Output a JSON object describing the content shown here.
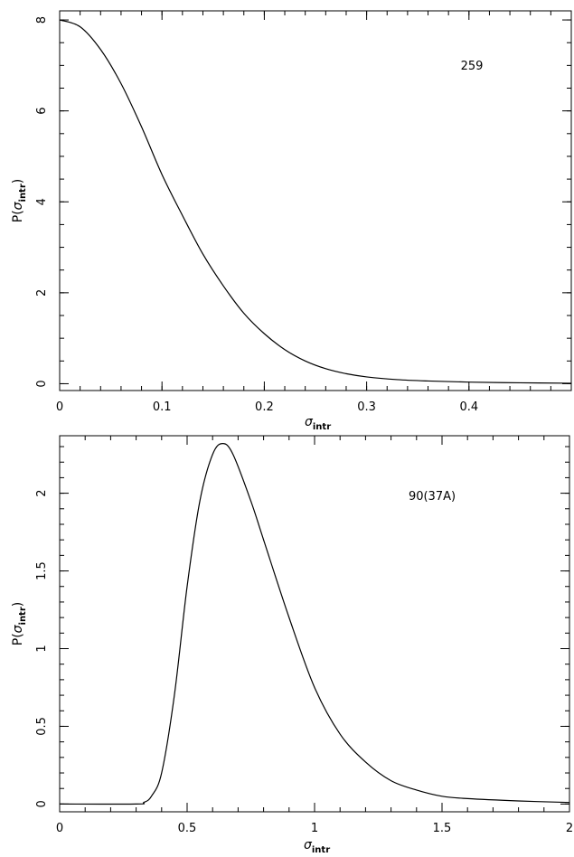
{
  "chart_data": [
    {
      "type": "line",
      "title": "",
      "xlabel": "σ",
      "xlabel_sub": "intr",
      "ylabel_prefix": "P(",
      "ylabel_sym": "σ",
      "ylabel_sub": "intr",
      "ylabel_suffix": ")",
      "annotation": "259",
      "xlim": [
        0,
        0.5
      ],
      "ylim": [
        -0.15,
        8.2
      ],
      "x_ticks": [
        0,
        0.1,
        0.2,
        0.3,
        0.4
      ],
      "x_tick_labels": [
        "0",
        "0.1",
        "0.2",
        "0.3",
        "0.4"
      ],
      "x_minor_step": 0.02,
      "y_ticks": [
        0,
        2,
        4,
        6,
        8
      ],
      "y_tick_labels": [
        "0",
        "2",
        "4",
        "6",
        "8"
      ],
      "y_minor_step": 0.5,
      "series": [
        {
          "x": [
            0,
            0.02,
            0.04,
            0.06,
            0.08,
            0.1,
            0.12,
            0.14,
            0.16,
            0.18,
            0.2,
            0.22,
            0.24,
            0.26,
            0.28,
            0.3,
            0.33,
            0.36,
            0.4,
            0.45,
            0.5
          ],
          "values": [
            8.0,
            7.85,
            7.35,
            6.6,
            5.65,
            4.6,
            3.7,
            2.85,
            2.15,
            1.55,
            1.1,
            0.75,
            0.5,
            0.33,
            0.22,
            0.15,
            0.09,
            0.06,
            0.035,
            0.02,
            0.01
          ]
        }
      ]
    },
    {
      "type": "line",
      "title": "",
      "xlabel": "σ",
      "xlabel_sub": "intr",
      "ylabel_prefix": "P(",
      "ylabel_sym": "σ",
      "ylabel_sub": "intr",
      "ylabel_suffix": ")",
      "annotation": "90(37A)",
      "xlim": [
        0,
        2
      ],
      "ylim": [
        -0.05,
        2.37
      ],
      "x_ticks": [
        0,
        0.5,
        1,
        1.5,
        2
      ],
      "x_tick_labels": [
        "0",
        "0.5",
        "1",
        "1.5",
        "2"
      ],
      "x_minor_step": 0.1,
      "y_ticks": [
        0,
        0.5,
        1,
        1.5,
        2
      ],
      "y_tick_labels": [
        "0",
        "0.5",
        "1",
        "1.5",
        "2"
      ],
      "y_minor_step": 0.1,
      "series": [
        {
          "x": [
            0,
            0.3,
            0.33,
            0.36,
            0.4,
            0.45,
            0.5,
            0.55,
            0.6,
            0.64,
            0.68,
            0.75,
            0.8,
            0.9,
            1.0,
            1.1,
            1.2,
            1.3,
            1.4,
            1.5,
            1.6,
            1.8,
            2.0
          ],
          "values": [
            0,
            0,
            0.01,
            0.05,
            0.2,
            0.7,
            1.4,
            1.95,
            2.25,
            2.32,
            2.25,
            1.95,
            1.7,
            1.2,
            0.75,
            0.45,
            0.27,
            0.15,
            0.09,
            0.05,
            0.035,
            0.02,
            0.01
          ]
        }
      ]
    }
  ]
}
